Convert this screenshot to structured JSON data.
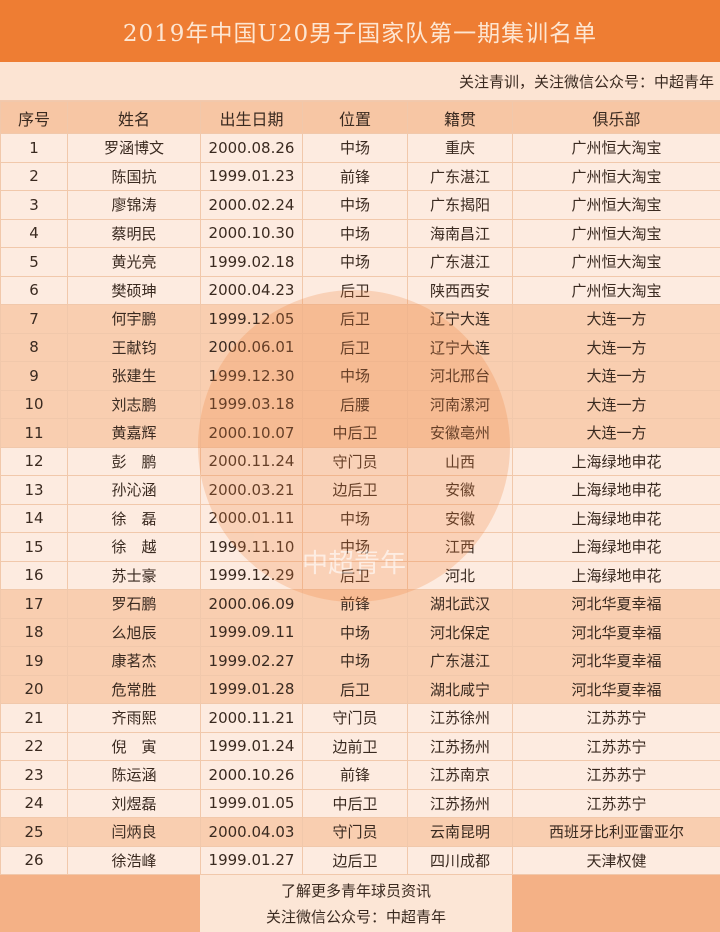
{
  "title": "2019年中国U20男子国家队第一期集训名单",
  "subtitle": "关注青训，关注微信公众号：中超青年",
  "columns": [
    "序号",
    "姓名",
    "出生日期",
    "位置",
    "籍贯",
    "俱乐部"
  ],
  "rows": [
    [
      "1",
      "罗涵博文",
      "2000.08.26",
      "中场",
      "重庆",
      "广州恒大淘宝"
    ],
    [
      "2",
      "陈国抗",
      "1999.01.23",
      "前锋",
      "广东湛江",
      "广州恒大淘宝"
    ],
    [
      "3",
      "廖锦涛",
      "2000.02.24",
      "中场",
      "广东揭阳",
      "广州恒大淘宝"
    ],
    [
      "4",
      "蔡明民",
      "2000.10.30",
      "中场",
      "海南昌江",
      "广州恒大淘宝"
    ],
    [
      "5",
      "黄光亮",
      "1999.02.18",
      "中场",
      "广东湛江",
      "广州恒大淘宝"
    ],
    [
      "6",
      "樊硕珅",
      "2000.04.23",
      "后卫",
      "陕西西安",
      "广州恒大淘宝"
    ],
    [
      "7",
      "何宇鹏",
      "1999.12.05",
      "后卫",
      "辽宁大连",
      "大连一方"
    ],
    [
      "8",
      "王献钧",
      "2000.06.01",
      "后卫",
      "辽宁大连",
      "大连一方"
    ],
    [
      "9",
      "张建生",
      "1999.12.30",
      "中场",
      "河北邢台",
      "大连一方"
    ],
    [
      "10",
      "刘志鹏",
      "1999.03.18",
      "后腰",
      "河南漯河",
      "大连一方"
    ],
    [
      "11",
      "黄嘉辉",
      "2000.10.07",
      "中后卫",
      "安徽亳州",
      "大连一方"
    ],
    [
      "12",
      "彭　鹏",
      "2000.11.24",
      "守门员",
      "山西",
      "上海绿地申花"
    ],
    [
      "13",
      "孙沁涵",
      "2000.03.21",
      "边后卫",
      "安徽",
      "上海绿地申花"
    ],
    [
      "14",
      "徐　磊",
      "2000.01.11",
      "中场",
      "安徽",
      "上海绿地申花"
    ],
    [
      "15",
      "徐　越",
      "1999.11.10",
      "中场",
      "江西",
      "上海绿地申花"
    ],
    [
      "16",
      "苏士豪",
      "1999.12.29",
      "后卫",
      "河北",
      "上海绿地申花"
    ],
    [
      "17",
      "罗石鹏",
      "2000.06.09",
      "前锋",
      "湖北武汉",
      "河北华夏幸福"
    ],
    [
      "18",
      "么旭辰",
      "1999.09.11",
      "中场",
      "河北保定",
      "河北华夏幸福"
    ],
    [
      "19",
      "康茗杰",
      "1999.02.27",
      "中场",
      "广东湛江",
      "河北华夏幸福"
    ],
    [
      "20",
      "危常胜",
      "1999.01.28",
      "后卫",
      "湖北咸宁",
      "河北华夏幸福"
    ],
    [
      "21",
      "齐雨熙",
      "2000.11.21",
      "守门员",
      "江苏徐州",
      "江苏苏宁"
    ],
    [
      "22",
      "倪　寅",
      "1999.01.24",
      "边前卫",
      "江苏扬州",
      "江苏苏宁"
    ],
    [
      "23",
      "陈运涵",
      "2000.10.26",
      "前锋",
      "江苏南京",
      "江苏苏宁"
    ],
    [
      "24",
      "刘煜磊",
      "1999.01.05",
      "中后卫",
      "江苏扬州",
      "江苏苏宁"
    ],
    [
      "25",
      "闫炳良",
      "2000.04.03",
      "守门员",
      "云南昆明",
      "西班牙比利亚雷亚尔"
    ],
    [
      "26",
      "徐浩峰",
      "1999.01.27",
      "边后卫",
      "四川成都",
      "天津权健"
    ]
  ],
  "footer": {
    "line1": "了解更多青年球员资讯",
    "line2": "关注微信公众号：中超青年"
  },
  "watermark": "中超青年",
  "colors": {
    "title_bg": "#ee7d33",
    "header_bg": "#f7c6a4",
    "row_light": "#fdece0",
    "row_dark": "#f8c8a6"
  }
}
